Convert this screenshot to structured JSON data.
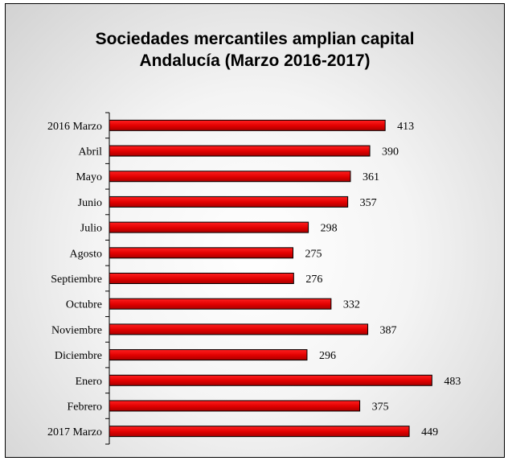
{
  "chart_data": {
    "type": "bar",
    "orientation": "horizontal",
    "title_lines": [
      "Sociedades mercantiles amplian capital",
      "Andalucía  (Marzo 2016-2017)"
    ],
    "categories": [
      "2016 Marzo",
      "Abril",
      "Mayo",
      "Junio",
      "Julio",
      "Agosto",
      "Septiembre",
      "Octubre",
      "Noviembre",
      "Diciembre",
      "Enero",
      "Febrero",
      "2017 Marzo"
    ],
    "values": [
      413,
      390,
      361,
      357,
      298,
      275,
      276,
      332,
      387,
      296,
      483,
      375,
      449
    ],
    "xlim": [
      0,
      550
    ],
    "grid": false,
    "legend": "none",
    "bar_color": "#e00000",
    "bar_border_color": "#000000"
  }
}
